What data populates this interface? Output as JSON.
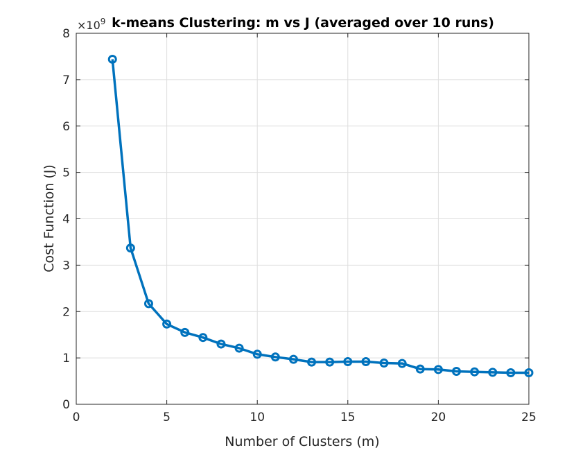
{
  "chart_data": {
    "type": "line",
    "title": "k-means Clustering: m vs J (averaged over 10 runs)",
    "xlabel": "Number of Clusters (m)",
    "ylabel": "Cost Function (J)",
    "y_multiplier": "×10",
    "y_multiplier_exponent": "9",
    "xlim": [
      0,
      25
    ],
    "ylim": [
      0,
      8
    ],
    "x_ticks": [
      0,
      5,
      10,
      15,
      20,
      25
    ],
    "y_ticks": [
      0,
      1,
      2,
      3,
      4,
      5,
      6,
      7,
      8
    ],
    "x_tick_labels": [
      "0",
      "5",
      "10",
      "15",
      "20",
      "25"
    ],
    "y_tick_labels": [
      "0",
      "1",
      "2",
      "3",
      "4",
      "5",
      "6",
      "7",
      "8"
    ],
    "grid": true,
    "legend": "none",
    "series": [
      {
        "marker": "circle",
        "color": "#0072BD",
        "x": [
          2,
          3,
          4,
          5,
          6,
          7,
          8,
          9,
          10,
          11,
          12,
          13,
          14,
          15,
          16,
          17,
          18,
          19,
          20,
          21,
          22,
          23,
          24,
          25
        ],
        "y": [
          7.44,
          3.37,
          2.17,
          1.73,
          1.55,
          1.44,
          1.3,
          1.21,
          1.08,
          1.02,
          0.97,
          0.91,
          0.91,
          0.92,
          0.92,
          0.89,
          0.88,
          0.76,
          0.75,
          0.71,
          0.7,
          0.69,
          0.68,
          0.68
        ]
      }
    ]
  },
  "colors": {
    "axes": "#262626",
    "grid": "#dedede",
    "line": "#0072BD"
  }
}
